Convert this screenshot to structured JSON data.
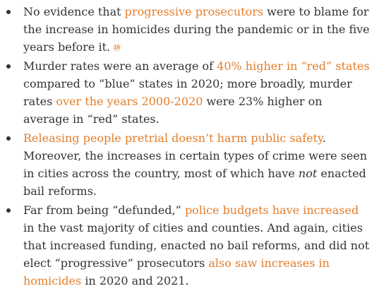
{
  "colors": {
    "text": "#333333",
    "link": "#e37e2b",
    "footnote_bg": "#fbe2cd"
  },
  "bullets": [
    {
      "t1": "No evidence that ",
      "link1": "progressive prosecutors",
      "t2": " were to blame for the increase in homicides during the pandemic or in the five years before it.",
      "footnote": "18"
    },
    {
      "t1": "Murder rates were an average of ",
      "link1": "40% higher in “red” states",
      "t2": " compared to “blue” states in 2020; more broadly, murder rates ",
      "link2": "over the years 2000-2020",
      "t3": " were 23% higher on average in “red” states."
    },
    {
      "link1": "Releasing people pretrial doesn’t harm public safety",
      "t1": ". Moreover, the increases in certain types of crime were seen in cities across the country, most of which have ",
      "em": "not",
      "t2": " enacted bail reforms."
    },
    {
      "t1": "Far from being “defunded,” ",
      "link1": "police budgets have increased",
      "t2": " in the vast majority of cities and counties. And again, cities that increased funding, enacted no bail reforms, and did not elect “progressive” prosecutors ",
      "link2": "also saw increases in homicides",
      "t3": " in 2020 and 2021."
    }
  ]
}
